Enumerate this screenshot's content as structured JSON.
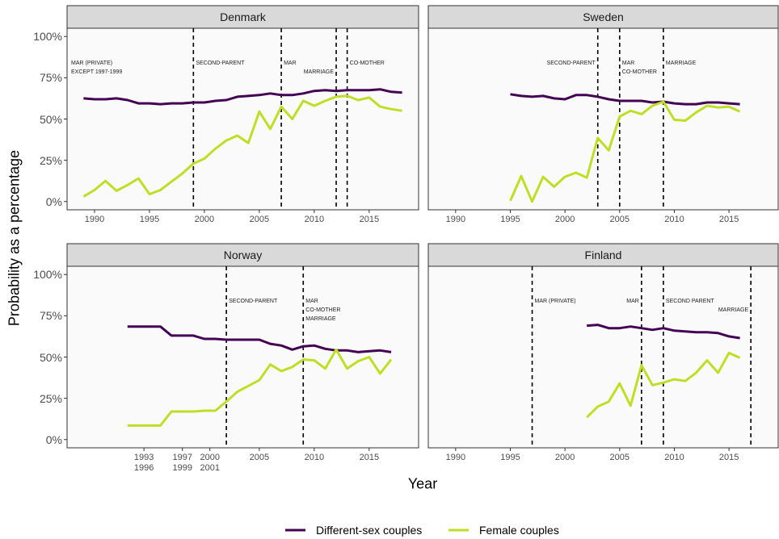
{
  "chart_data": {
    "type": "line",
    "xlabel": "Year",
    "ylabel": "Probability as a percentage",
    "ylim": [
      -5,
      105
    ],
    "yticks": [
      {
        "value": 0,
        "label": "0%"
      },
      {
        "value": 25,
        "label": "25%"
      },
      {
        "value": 50,
        "label": "50%"
      },
      {
        "value": 75,
        "label": "75%"
      },
      {
        "value": 100,
        "label": "100%"
      }
    ],
    "series": [
      {
        "name": "Different-sex couples",
        "color": "#440154"
      },
      {
        "name": "Female couples",
        "color": "#bddf26"
      }
    ],
    "panels": [
      {
        "title": "Denmark",
        "xlim": [
          1987.5,
          2019.5
        ],
        "xticks": [
          1990,
          1995,
          2000,
          2005,
          2010,
          2015
        ],
        "x": [
          1989,
          1990,
          1991,
          1992,
          1993,
          1994,
          1995,
          1996,
          1997,
          1998,
          1999,
          2000,
          2001,
          2002,
          2003,
          2004,
          2005,
          2006,
          2007,
          2008,
          2009,
          2010,
          2011,
          2012,
          2013,
          2014,
          2015,
          2016,
          2017,
          2018
        ],
        "series": [
          {
            "values": [
              62.5,
              62,
              62,
              62.5,
              61.5,
              59.5,
              59.5,
              59,
              59.5,
              59.5,
              60,
              60,
              61,
              61.5,
              63.5,
              64,
              64.5,
              65.5,
              64.5,
              64.5,
              65.5,
              67,
              67.5,
              67,
              67.5,
              67.5,
              67.5,
              68,
              66.5,
              66
            ]
          },
          {
            "values": [
              3,
              7,
              12.5,
              6.5,
              10,
              14,
              4.5,
              7,
              12,
              17,
              23,
              26,
              32,
              37,
              40,
              35.5,
              54.5,
              44,
              57.5,
              50,
              61,
              58,
              61,
              63.5,
              64,
              61.5,
              63,
              57.5,
              56,
              55
            ]
          }
        ],
        "annotations": [
          {
            "label": "MAR (PRIVATE)\nEXCEPT 1997-1999"
          },
          {
            "x": 1999,
            "label": "SECOND-PARENT"
          },
          {
            "x": 2007,
            "label": "MAR"
          },
          {
            "x": 2012,
            "label": "MARRIAGE"
          },
          {
            "x": 2013,
            "label": "CO-MOTHER"
          }
        ]
      },
      {
        "title": "Sweden",
        "xlim": [
          1987.5,
          2019.5
        ],
        "xticks": [
          1990,
          1995,
          2000,
          2005,
          2010,
          2015
        ],
        "x": [
          1995,
          1996,
          1997,
          1998,
          1999,
          2000,
          2001,
          2002,
          2003,
          2004,
          2005,
          2006,
          2007,
          2008,
          2009,
          2010,
          2011,
          2012,
          2013,
          2014,
          2015,
          2016
        ],
        "series": [
          {
            "values": [
              65,
              64,
              63.5,
              64,
              62.5,
              62,
              64.5,
              64.5,
              63.5,
              62,
              61,
              61,
              61,
              60,
              60.5,
              59.5,
              59,
              59,
              60,
              60,
              59.5,
              59
            ]
          },
          {
            "values": [
              0.5,
              15.5,
              0,
              15,
              9,
              15,
              17.5,
              14.5,
              38.5,
              31,
              51.5,
              55,
              53,
              58,
              60.5,
              49.5,
              49,
              54,
              58,
              57,
              57.5,
              54.5
            ]
          }
        ],
        "annotations": [
          {
            "x": 2003,
            "label": "SECOND-PARENT"
          },
          {
            "x": 2005,
            "label": "MAR\nCO-MOTHER"
          },
          {
            "x": 2009,
            "label": "MARRIAGE"
          }
        ]
      },
      {
        "title": "Norway",
        "xlim": [
          1987.5,
          2019.5
        ],
        "xticks": [
          {
            "value": 1994.5,
            "label": "1993\n1996"
          },
          {
            "value": 1998,
            "label": "1997\n1999"
          },
          {
            "value": 2000.5,
            "label": "2000\n2001"
          },
          2005,
          2010,
          2015
        ],
        "x": [
          1993,
          1994,
          1995,
          1996,
          1997,
          1998,
          1999,
          2000,
          2001,
          2002,
          2003,
          2004,
          2005,
          2006,
          2007,
          2008,
          2009,
          2010,
          2011,
          2012,
          2013,
          2014,
          2015,
          2016,
          2017
        ],
        "series": [
          {
            "values": [
              68.5,
              68.5,
              68.5,
              68.5,
              63,
              63,
              63,
              61,
              61,
              60.5,
              60.5,
              60.5,
              60.5,
              58,
              57,
              54.5,
              56.5,
              57,
              55,
              54,
              54,
              53,
              53.5,
              54,
              53
            ]
          },
          {
            "values": [
              8.5,
              8.5,
              8.5,
              8.5,
              17,
              17,
              17,
              17.5,
              17.5,
              23,
              29,
              32.5,
              36,
              45.5,
              41.5,
              44,
              48.5,
              48,
              43,
              54.5,
              43,
              47.5,
              50,
              40,
              48.5
            ]
          }
        ],
        "annotations": [
          {
            "x": 2002,
            "label": "SECOND-PARENT"
          },
          {
            "x": 2009,
            "label": "MAR\nCO-MOTHER\nMARRIAGE"
          }
        ]
      },
      {
        "title": "Finland",
        "xlim": [
          1987.5,
          2019.5
        ],
        "xticks": [
          1990,
          1995,
          2000,
          2005,
          2010,
          2015
        ],
        "x": [
          2002,
          2003,
          2004,
          2005,
          2006,
          2007,
          2008,
          2009,
          2010,
          2011,
          2012,
          2013,
          2014,
          2015,
          2016
        ],
        "series": [
          {
            "values": [
              69,
              69.5,
              67.5,
              67.5,
              68.5,
              67.5,
              66.5,
              67.5,
              66,
              65.5,
              65,
              65,
              64.5,
              62.5,
              61.5
            ]
          },
          {
            "values": [
              13.5,
              20,
              23,
              34,
              20.5,
              45,
              33,
              34.5,
              36.5,
              35.5,
              40.5,
              48,
              40.5,
              52.5,
              49.5
            ]
          }
        ],
        "annotations": [
          {
            "x": 1997,
            "label": "MAR (PRIVATE)"
          },
          {
            "x": 2007,
            "label": "MAR"
          },
          {
            "x": 2009,
            "label": "SECOND PARENT"
          },
          {
            "x": 2017,
            "label": "MARRIAGE"
          }
        ]
      }
    ]
  }
}
